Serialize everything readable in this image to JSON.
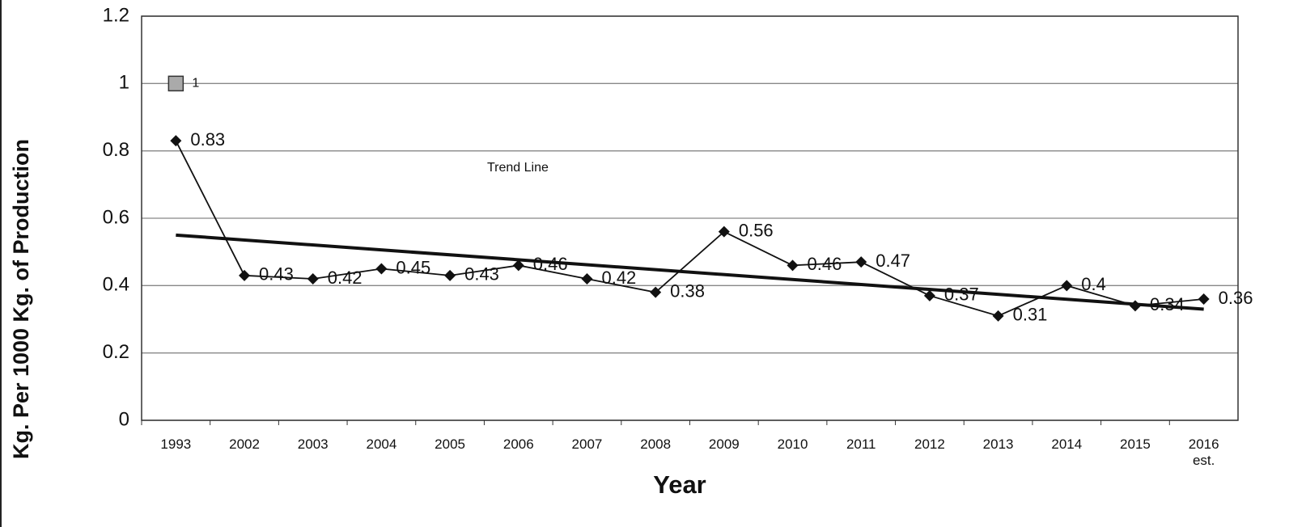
{
  "chart_data": {
    "type": "line",
    "y_label": "Kg. Per 1000 Kg. of Production",
    "x_label": "Year",
    "categories": [
      "1993",
      "2002",
      "2003",
      "2004",
      "2005",
      "2006",
      "2007",
      "2008",
      "2009",
      "2010",
      "2011",
      "2012",
      "2013",
      "2014",
      "2015",
      "2016\nest."
    ],
    "series": [
      {
        "color": "#111111",
        "marker": "diamond",
        "values": [
          0.83,
          0.43,
          0.42,
          0.45,
          0.43,
          0.46,
          0.42,
          0.38,
          0.56,
          0.46,
          0.47,
          0.37,
          0.31,
          0.4,
          0.34,
          0.36
        ]
      },
      {
        "color": "#aaaaaa",
        "marker": "square",
        "values": [
          1,
          null,
          null,
          null,
          null,
          null,
          null,
          null,
          null,
          null,
          null,
          null,
          null,
          null,
          null,
          null
        ]
      }
    ],
    "trend_line": {
      "label": "Trend Line",
      "color": "#111111",
      "start": 0.55,
      "end": 0.33
    },
    "ylim": [
      0,
      1.2
    ],
    "yticks": [
      0,
      0.2,
      0.4,
      0.6,
      0.8,
      1,
      1.2
    ],
    "grid": true
  }
}
